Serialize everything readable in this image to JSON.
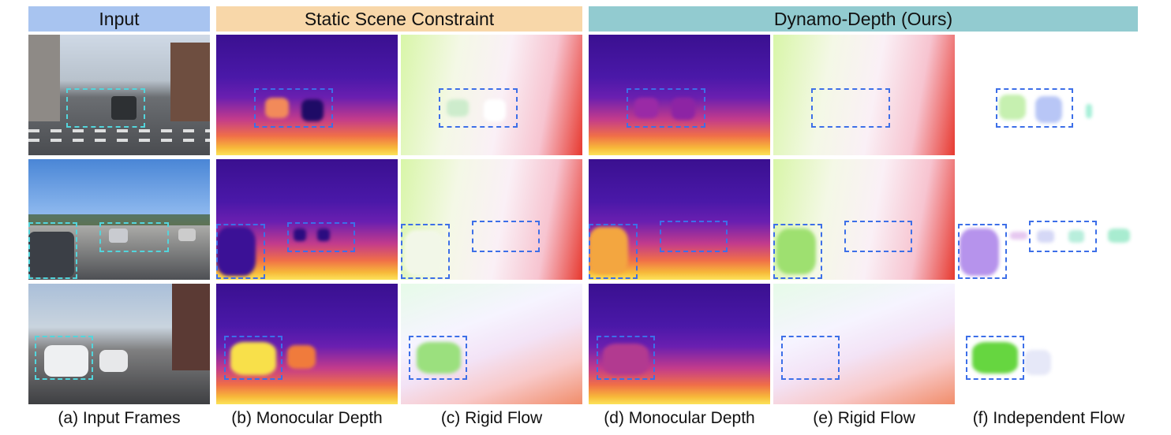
{
  "headers": {
    "input": "Input",
    "static": "Static Scene Constraint",
    "dynamo": "Dynamo-Depth (Ours)"
  },
  "header_colors": {
    "input": "#a8c4f0",
    "static": "#f8d7a9",
    "dynamo": "#92cbd0"
  },
  "captions": {
    "a": "(a) Input Frames",
    "b": "(b) Monocular Depth",
    "c": "(c) Rigid Flow",
    "d": "(d) Monocular Depth",
    "e": "(e) Rigid Flow",
    "f": "(f) Independent Flow"
  },
  "box_colors": {
    "highlight": "#3d6fe8",
    "input_highlight": "#53d5dc"
  }
}
